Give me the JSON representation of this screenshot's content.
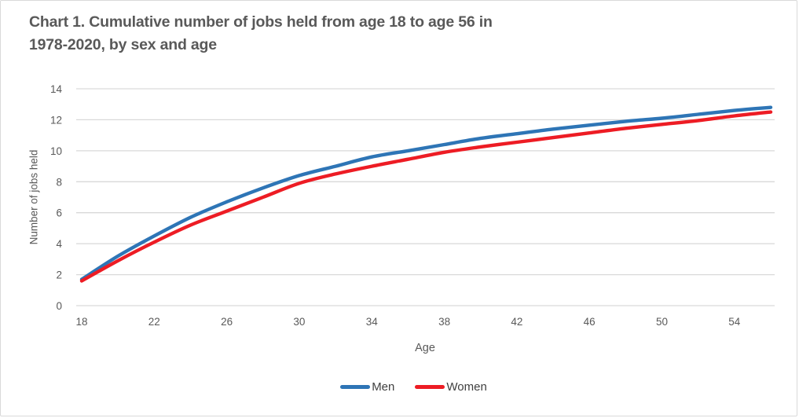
{
  "page": {
    "title_line1": "Chart 1. Cumulative number of jobs held from age 18 to age 56 in",
    "title_line2": "1978-2020, by sex and age"
  },
  "colors": {
    "background": "#FFFFFF",
    "border": "#D9D9D9",
    "gridline": "#D9D9D9",
    "axis_text": "#595959",
    "title_text": "#595959",
    "legend_text": "#3F3F3F",
    "men_line": "#2E75B6",
    "women_line": "#ED1C24"
  },
  "chart_data": {
    "type": "line",
    "title": "Chart 1. Cumulative number of jobs held from age 18 to age 56 in 1978-2020, by sex and age",
    "xlabel": "Age",
    "ylabel": "Number of jobs held",
    "xlim": [
      18,
      56
    ],
    "ylim": [
      0,
      14
    ],
    "x_ticks": [
      18,
      22,
      26,
      30,
      34,
      38,
      42,
      46,
      50,
      54
    ],
    "y_ticks": [
      0,
      2,
      4,
      6,
      8,
      10,
      12,
      14
    ],
    "grid": "horizontal",
    "legend_position": "bottom",
    "x": [
      18,
      20,
      22,
      24,
      26,
      28,
      30,
      32,
      34,
      36,
      38,
      40,
      42,
      44,
      46,
      48,
      50,
      52,
      54,
      56
    ],
    "series": [
      {
        "name": "Men",
        "color": "#2E75B6",
        "values": [
          1.7,
          3.2,
          4.5,
          5.7,
          6.7,
          7.6,
          8.4,
          9.0,
          9.6,
          10.0,
          10.4,
          10.8,
          11.1,
          11.4,
          11.65,
          11.9,
          12.1,
          12.35,
          12.6,
          12.8
        ]
      },
      {
        "name": "Women",
        "color": "#ED1C24",
        "values": [
          1.6,
          2.9,
          4.1,
          5.2,
          6.1,
          7.0,
          7.9,
          8.5,
          9.0,
          9.45,
          9.9,
          10.25,
          10.55,
          10.85,
          11.15,
          11.45,
          11.7,
          11.95,
          12.25,
          12.5
        ]
      }
    ]
  }
}
